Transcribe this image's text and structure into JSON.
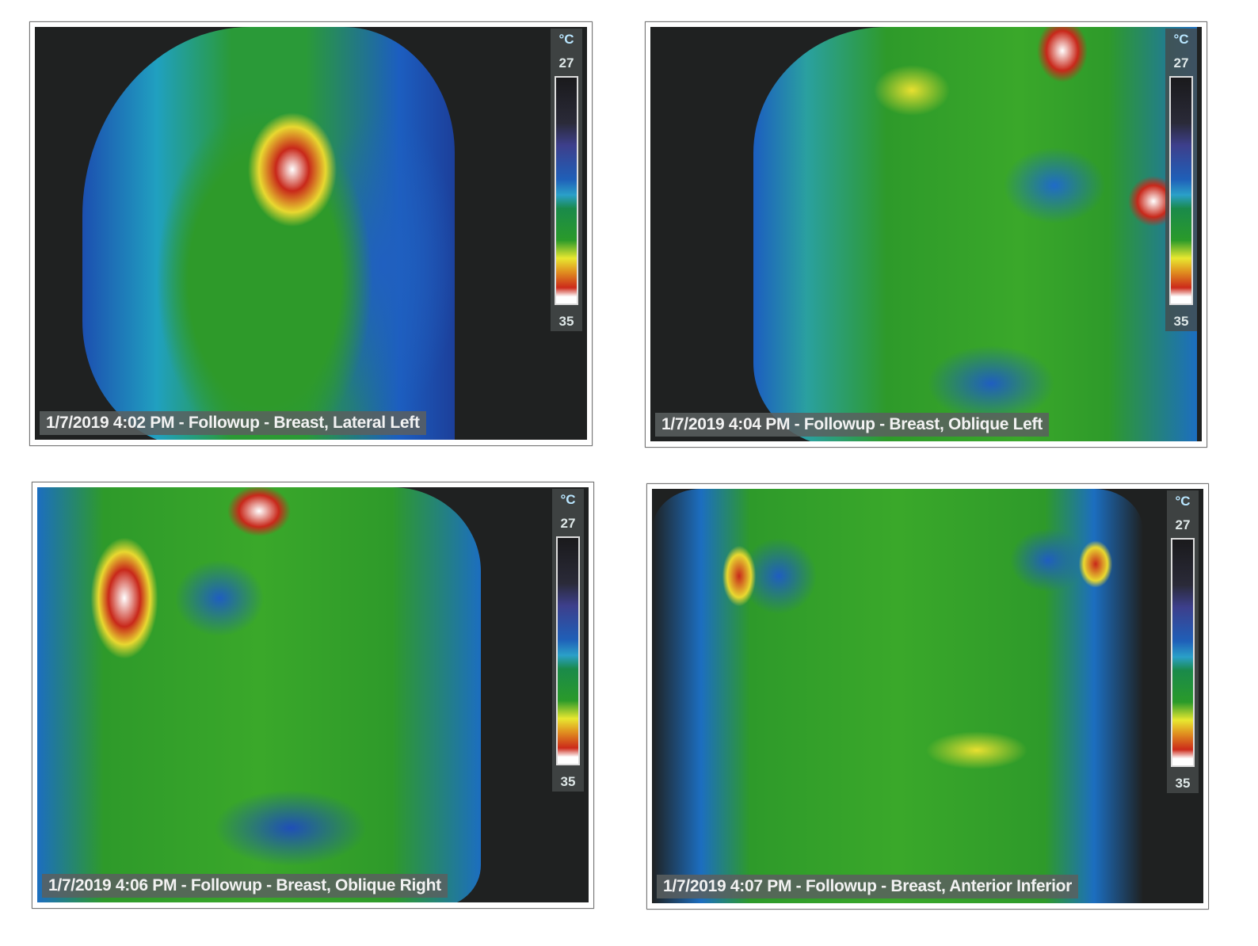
{
  "scale": {
    "unit": "°C",
    "max_label": "27",
    "min_label": "35"
  },
  "panels": [
    {
      "caption": "1/7/2019 4:02 PM - Followup - Breast, Lateral Left"
    },
    {
      "caption": "1/7/2019 4:04 PM - Followup - Breast, Oblique Left"
    },
    {
      "caption": "1/7/2019 4:06 PM - Followup - Breast, Oblique Right"
    },
    {
      "caption": "1/7/2019 4:07 PM - Followup - Breast, Anterior Inferior"
    }
  ]
}
